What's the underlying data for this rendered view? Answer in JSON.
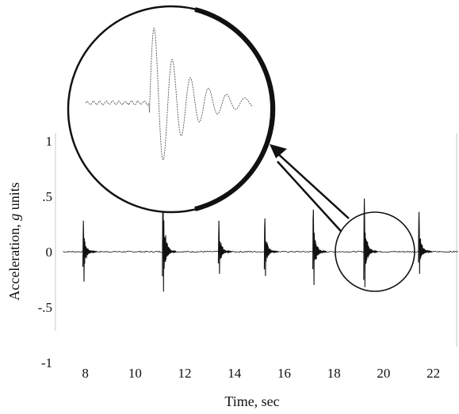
{
  "chart_data": {
    "type": "line",
    "xlabel": "Time, sec",
    "ylabel_prefix": "Acceleration, ",
    "ylabel_italic": "g",
    "ylabel_suffix": " units",
    "xlim": [
      6.8,
      23.0
    ],
    "ylim": [
      -1,
      1
    ],
    "x_ticks": [
      {
        "value": 8,
        "label": "8"
      },
      {
        "value": 10,
        "label": "10"
      },
      {
        "value": 12,
        "label": "12"
      },
      {
        "value": 14,
        "label": "14"
      },
      {
        "value": 16,
        "label": "16"
      },
      {
        "value": 18,
        "label": "18"
      },
      {
        "value": 20,
        "label": "20"
      },
      {
        "value": 22,
        "label": "22"
      }
    ],
    "y_ticks": [
      {
        "value": 1,
        "label": "1"
      },
      {
        "value": 0.5,
        "label": ".5"
      },
      {
        "value": 0,
        "label": "0"
      },
      {
        "value": -0.5,
        "label": "-.5"
      },
      {
        "value": -1,
        "label": "-1"
      }
    ],
    "grid": false,
    "series": [
      {
        "bursts": [
          {
            "t": 7.9,
            "peak": 0.28,
            "trough": -0.27
          },
          {
            "t": 11.1,
            "peak": 0.6,
            "trough": -0.36
          },
          {
            "t": 13.35,
            "peak": 0.28,
            "trough": -0.2
          },
          {
            "t": 15.2,
            "peak": 0.3,
            "trough": -0.22
          },
          {
            "t": 17.15,
            "peak": 0.38,
            "trough": -0.3
          },
          {
            "t": 19.2,
            "peak": 0.48,
            "trough": -0.32
          },
          {
            "t": 21.4,
            "peak": 0.36,
            "trough": -0.2
          }
        ]
      }
    ],
    "annotations": [
      {
        "type": "circle-highlight",
        "center_x": 19.65,
        "center_y": 0,
        "note": "small circle around burst"
      },
      {
        "type": "magnified-inset",
        "note": "enlarged waveform of one burst, pointed to by double arrow"
      }
    ]
  }
}
